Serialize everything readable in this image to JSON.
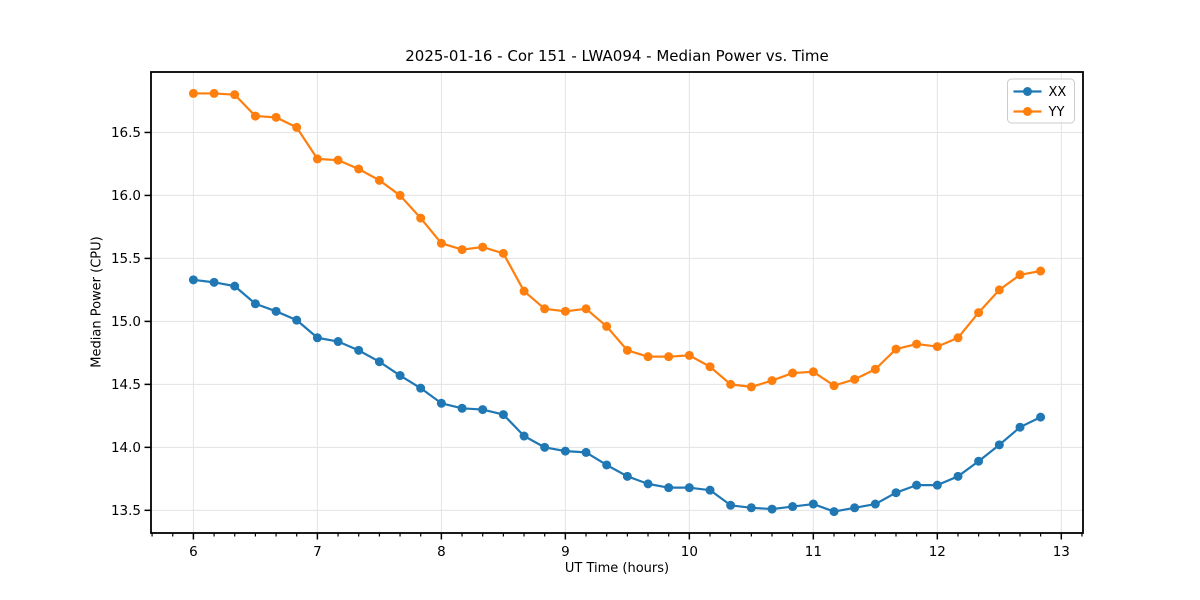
{
  "chart_data": {
    "type": "line",
    "title": "2025-01-16 - Cor 151 - LWA094 - Median Power vs. Time",
    "xlabel": "UT Time (hours)",
    "ylabel": "Median Power (CPU)",
    "xlim": [
      5.658,
      13.175
    ],
    "ylim": [
      13.32,
      16.98
    ],
    "xticks": [
      6,
      7,
      8,
      9,
      10,
      11,
      12,
      13
    ],
    "yticks": [
      13.5,
      14.0,
      14.5,
      15.0,
      15.5,
      16.0,
      16.5
    ],
    "x_minor_per_major": 6,
    "grid": true,
    "legend_position": "upper right",
    "x": [
      6.0,
      6.167,
      6.333,
      6.5,
      6.667,
      6.833,
      7.0,
      7.167,
      7.333,
      7.5,
      7.667,
      7.833,
      8.0,
      8.167,
      8.333,
      8.5,
      8.667,
      8.833,
      9.0,
      9.167,
      9.333,
      9.5,
      9.667,
      9.833,
      10.0,
      10.167,
      10.333,
      10.5,
      10.667,
      10.833,
      11.0,
      11.167,
      11.333,
      11.5,
      11.667,
      11.833,
      12.0,
      12.167,
      12.333,
      12.5,
      12.667,
      12.833
    ],
    "series": [
      {
        "name": "XX",
        "color": "#1f77b4",
        "values": [
          15.33,
          15.31,
          15.28,
          15.14,
          15.08,
          15.01,
          14.87,
          14.84,
          14.77,
          14.68,
          14.57,
          14.47,
          14.35,
          14.31,
          14.3,
          14.26,
          14.09,
          14.0,
          13.97,
          13.96,
          13.86,
          13.77,
          13.71,
          13.68,
          13.68,
          13.66,
          13.54,
          13.52,
          13.51,
          13.53,
          13.55,
          13.49,
          13.52,
          13.55,
          13.64,
          13.7,
          13.7,
          13.77,
          13.89,
          14.02,
          14.16,
          14.24
        ]
      },
      {
        "name": "YY",
        "color": "#ff7f0e",
        "values": [
          16.81,
          16.81,
          16.8,
          16.63,
          16.62,
          16.54,
          16.29,
          16.28,
          16.21,
          16.12,
          16.0,
          15.82,
          15.62,
          15.57,
          15.59,
          15.54,
          15.24,
          15.1,
          15.08,
          15.1,
          14.96,
          14.77,
          14.72,
          14.72,
          14.73,
          14.64,
          14.5,
          14.48,
          14.53,
          14.59,
          14.6,
          14.49,
          14.54,
          14.62,
          14.78,
          14.82,
          14.8,
          14.87,
          15.07,
          15.25,
          15.37,
          15.4
        ]
      }
    ]
  },
  "style": {
    "grid_color": "#e3e3e3",
    "spine_color": "#000000",
    "text_color": "#000000",
    "legend_border_color": "#cccccc",
    "background_color": "#ffffff"
  }
}
